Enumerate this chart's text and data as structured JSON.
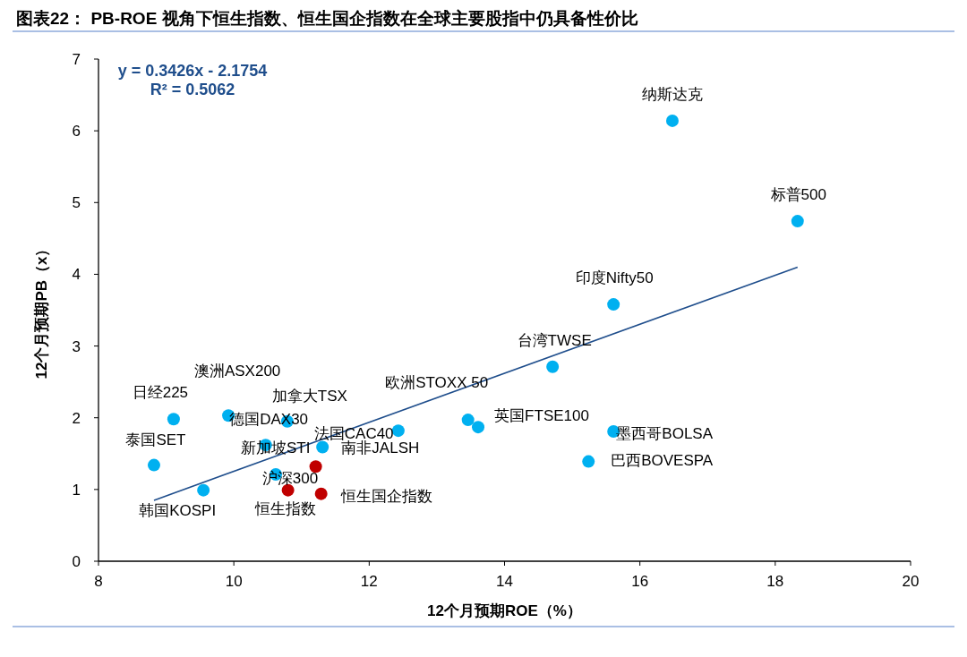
{
  "chart_data": {
    "type": "scatter",
    "title": "图表22： PB-ROE 视角下恒生指数、恒生国企指数在全球主要股指中仍具备性价比",
    "xlabel": "12个月预期ROE（%）",
    "ylabel": "12个月预期PB（x）",
    "xlim": [
      8,
      20
    ],
    "ylim": [
      0,
      7
    ],
    "xticks": [
      8,
      10,
      12,
      14,
      16,
      18,
      20
    ],
    "yticks": [
      0,
      1,
      2,
      3,
      4,
      5,
      6,
      7
    ],
    "grid": false,
    "marker": "circle",
    "series": [
      {
        "color": "#00b0f0",
        "x": [
          9.11,
          9.92,
          10.79,
          8.82,
          9.55,
          10.47,
          10.62,
          11.31,
          12.43,
          13.46,
          13.61,
          14.71,
          15.61,
          16.48,
          18.33,
          15.61,
          15.24
        ],
        "values": [
          1.98,
          2.03,
          1.95,
          1.34,
          0.99,
          1.62,
          1.21,
          1.59,
          1.82,
          1.97,
          1.87,
          2.71,
          3.58,
          6.14,
          4.74,
          1.81,
          1.39
        ]
      },
      {
        "color": "#c00000",
        "x": [
          10.8,
          11.29,
          11.21
        ],
        "values": [
          0.99,
          0.94,
          1.32
        ]
      },
      {
        "type": "line",
        "marker": "none",
        "color": "#1f4e8c",
        "x": [
          8.82,
          18.33
        ],
        "values": [
          0.85,
          4.1
        ]
      }
    ],
    "annotations": [
      "y = 0.3426x - 2.1754",
      "R² = 0.5062",
      {
        "text": "日经225",
        "x": 9.11,
        "y": 1.98
      },
      {
        "text": "澳洲ASX200",
        "x": 9.92,
        "y": 2.03
      },
      {
        "text": "加拿大TSX",
        "x": 10.79,
        "y": 1.95
      },
      {
        "text": "德国DAX30",
        "x": 9.92,
        "y": 2.03
      },
      {
        "text": "泰国SET",
        "x": 8.82,
        "y": 1.34
      },
      {
        "text": "韩国KOSPI",
        "x": 9.55,
        "y": 0.99
      },
      {
        "text": "新加坡STI",
        "x": 10.47,
        "y": 1.62
      },
      {
        "text": "沪深300",
        "x": 10.62,
        "y": 1.21
      },
      {
        "text": "法国CAC40",
        "x": 11.31,
        "y": 1.59
      },
      {
        "text": "南非JALSH",
        "x": 12.43,
        "y": 1.82
      },
      {
        "text": "欧洲STOXX 50",
        "x": 13.46,
        "y": 1.97
      },
      {
        "text": "英国FTSE100",
        "x": 13.61,
        "y": 1.87
      },
      {
        "text": "台湾TWSE",
        "x": 14.71,
        "y": 2.71
      },
      {
        "text": "印度Nifty50",
        "x": 15.61,
        "y": 3.58
      },
      {
        "text": "纳斯达克",
        "x": 16.48,
        "y": 6.14
      },
      {
        "text": "标普500",
        "x": 18.33,
        "y": 4.74
      },
      {
        "text": "墨西哥BOLSA",
        "x": 15.61,
        "y": 1.81
      },
      {
        "text": "巴西BOVESPA",
        "x": 15.24,
        "y": 1.39
      },
      {
        "text": "恒生指数",
        "x": 10.8,
        "y": 0.99
      },
      {
        "text": "恒生国企指数",
        "x": 11.29,
        "y": 0.94
      }
    ]
  }
}
